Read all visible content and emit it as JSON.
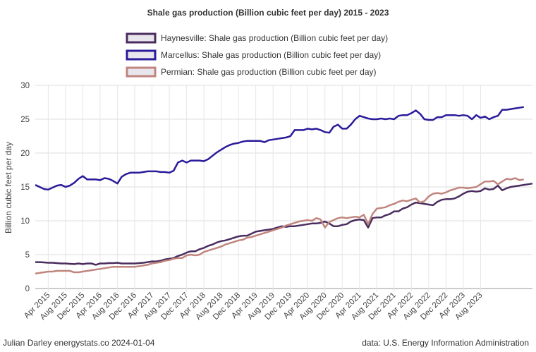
{
  "chart_data": {
    "type": "line",
    "title": "Shale gas production (Billion cubic feet per day) 2015 - 2023",
    "ylabel": "Billion cubic feet per day",
    "xlabel": "",
    "ylim": [
      0,
      30
    ],
    "yticks": [
      0,
      5,
      10,
      15,
      20,
      25,
      30
    ],
    "x_start": "2015-01",
    "x_end": "2023-12",
    "xtick_labels": [
      "Apr 2015",
      "Aug 2015",
      "Dec 2015",
      "Apr 2016",
      "Aug 2016",
      "Dec 2016",
      "Apr 2017",
      "Aug 2017",
      "Dec 2017",
      "Apr 2018",
      "Aug 2018",
      "Dec 2018",
      "Apr 2019",
      "Aug 2019",
      "Dec 2019",
      "Apr 2020",
      "Aug 2020",
      "Dec 2020",
      "Apr 2021",
      "Aug 2021",
      "Dec 2021",
      "Apr 2022",
      "Aug 2022",
      "Dec 2022",
      "Apr 2023",
      "Aug 2023"
    ],
    "grid": true,
    "legend_position": "top-center",
    "series": [
      {
        "name": "Haynesville: Shale gas production (Billion cubic feet per day)",
        "color": "#4a2d5e",
        "values": [
          3.9,
          3.9,
          3.85,
          3.8,
          3.8,
          3.75,
          3.7,
          3.7,
          3.65,
          3.6,
          3.7,
          3.6,
          3.7,
          3.7,
          3.5,
          3.7,
          3.7,
          3.75,
          3.75,
          3.8,
          3.7,
          3.7,
          3.7,
          3.7,
          3.75,
          3.8,
          3.9,
          4.0,
          4.0,
          4.1,
          4.3,
          4.4,
          4.5,
          4.8,
          5.0,
          5.3,
          5.5,
          5.5,
          5.8,
          6.0,
          6.3,
          6.5,
          6.8,
          7.0,
          7.1,
          7.3,
          7.5,
          7.7,
          7.8,
          7.8,
          8.1,
          8.4,
          8.5,
          8.6,
          8.7,
          8.8,
          9.0,
          9.2,
          9.1,
          9.2,
          9.2,
          9.3,
          9.4,
          9.5,
          9.6,
          9.6,
          9.7,
          9.9,
          9.6,
          9.2,
          9.2,
          9.4,
          9.5,
          9.9,
          10.1,
          10.2,
          10.1,
          9.0,
          10.4,
          10.5,
          10.5,
          10.8,
          11.0,
          11.4,
          11.4,
          11.8,
          12.0,
          12.4,
          12.7,
          12.6,
          12.5,
          12.4,
          12.3,
          12.8,
          13.1,
          13.2,
          13.2,
          13.3,
          13.6,
          14.0,
          14.3,
          14.4,
          14.3,
          14.4,
          14.8,
          14.6,
          14.7,
          15.2,
          14.5,
          14.8,
          15.0,
          15.1,
          15.2,
          15.3,
          15.4,
          15.5
        ]
      },
      {
        "name": "Marcellus: Shale gas production (Billion cubic feet per day)",
        "color": "#2a1b9a",
        "values": [
          15.3,
          15.0,
          14.7,
          14.6,
          14.9,
          15.2,
          15.3,
          15.0,
          15.2,
          15.6,
          16.2,
          16.6,
          16.1,
          16.1,
          16.1,
          16.0,
          16.3,
          16.2,
          15.9,
          15.5,
          16.5,
          16.9,
          17.1,
          17.1,
          17.1,
          17.2,
          17.3,
          17.3,
          17.3,
          17.2,
          17.2,
          17.1,
          17.4,
          18.6,
          18.9,
          18.6,
          18.9,
          18.9,
          18.9,
          18.8,
          19.1,
          19.6,
          20.1,
          20.5,
          20.9,
          21.2,
          21.4,
          21.5,
          21.7,
          21.8,
          21.8,
          21.8,
          21.8,
          21.6,
          21.9,
          22.0,
          22.1,
          22.2,
          22.3,
          22.5,
          23.4,
          23.4,
          23.4,
          23.6,
          23.5,
          23.6,
          23.4,
          23.1,
          23.0,
          23.9,
          24.2,
          23.6,
          23.6,
          24.2,
          25.0,
          25.5,
          25.3,
          25.1,
          25.0,
          25.0,
          25.1,
          25.0,
          25.1,
          25.0,
          25.5,
          25.6,
          25.6,
          25.9,
          26.3,
          25.8,
          25.0,
          24.9,
          24.9,
          25.3,
          25.3,
          25.6,
          25.6,
          25.6,
          25.5,
          25.6,
          25.5,
          25.0,
          25.6,
          25.2,
          25.4,
          25.0,
          25.3,
          25.5,
          26.4,
          26.4,
          26.5,
          26.6,
          26.7,
          26.8
        ]
      },
      {
        "name": "Permian: Shale gas production (Billion cubic feet per day)",
        "color": "#c0857e",
        "values": [
          2.2,
          2.3,
          2.4,
          2.5,
          2.5,
          2.6,
          2.6,
          2.6,
          2.6,
          2.4,
          2.4,
          2.5,
          2.6,
          2.7,
          2.8,
          2.9,
          3.0,
          3.1,
          3.2,
          3.2,
          3.2,
          3.2,
          3.2,
          3.2,
          3.3,
          3.4,
          3.5,
          3.7,
          3.8,
          3.9,
          4.1,
          4.2,
          4.4,
          4.5,
          4.5,
          4.9,
          5.0,
          4.9,
          5.0,
          5.4,
          5.6,
          5.8,
          6.0,
          6.2,
          6.5,
          6.7,
          6.9,
          7.1,
          7.2,
          7.5,
          7.6,
          7.8,
          8.0,
          8.2,
          8.4,
          8.6,
          8.8,
          9.0,
          9.3,
          9.5,
          9.7,
          9.9,
          10.0,
          10.1,
          10.0,
          10.4,
          10.2,
          9.0,
          9.8,
          10.1,
          10.4,
          10.5,
          10.4,
          10.5,
          10.6,
          10.5,
          10.9,
          9.5,
          11.0,
          11.8,
          11.9,
          12.0,
          12.3,
          12.5,
          12.8,
          13.0,
          12.9,
          13.1,
          13.3,
          12.7,
          12.9,
          13.6,
          14.0,
          14.1,
          14.0,
          14.2,
          14.5,
          14.7,
          14.9,
          14.9,
          14.8,
          14.9,
          15.0,
          15.4,
          15.8,
          15.8,
          15.9,
          15.4,
          15.8,
          16.2,
          16.1,
          16.3,
          16.0,
          16.1
        ]
      }
    ]
  },
  "footer": {
    "left": "Julian Darley energystats.co 2024-01-04",
    "right": "data: U.S. Energy Information Administration"
  }
}
